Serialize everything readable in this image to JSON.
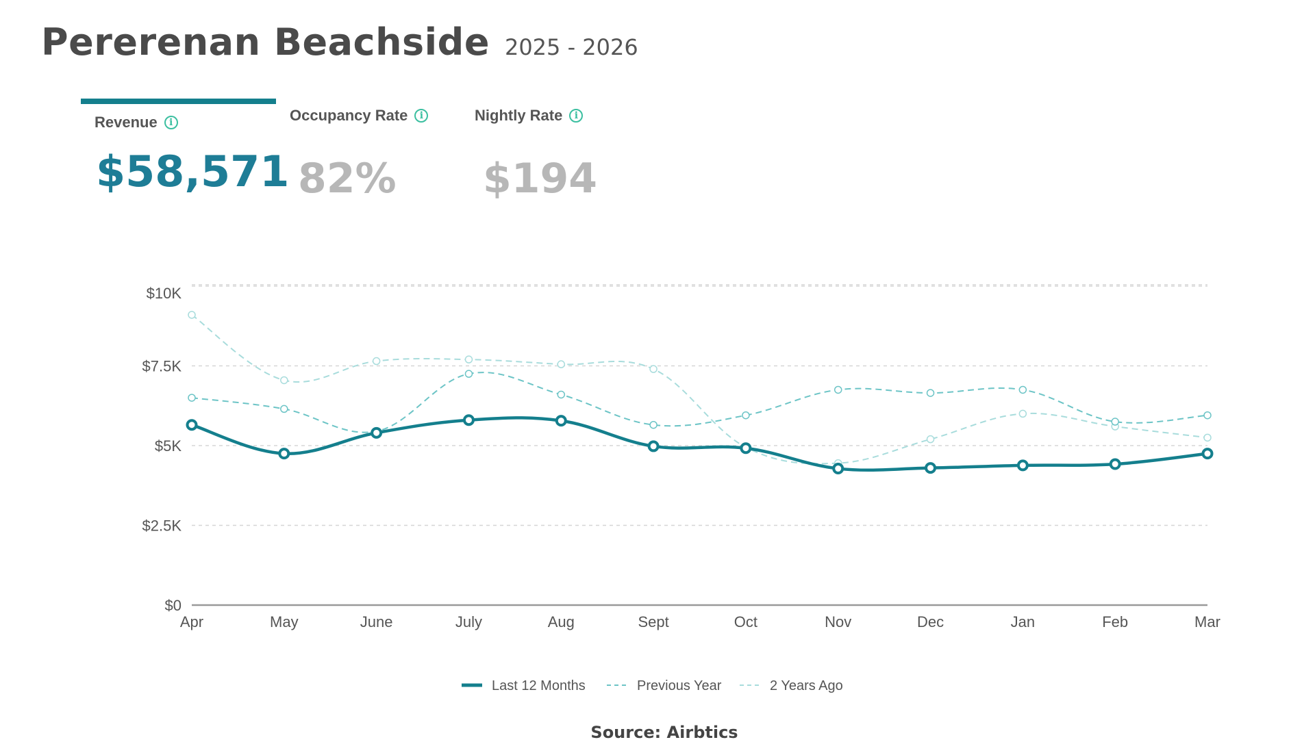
{
  "header": {
    "title": "Pererenan Beachside",
    "subtitle": "2025 - 2026"
  },
  "kpis": [
    {
      "label": "Revenue",
      "value": "$58,571",
      "active": true,
      "icon": "info-icon"
    },
    {
      "label": "Occupancy Rate",
      "value": "82%",
      "active": false,
      "icon": "info-icon"
    },
    {
      "label": "Nightly Rate",
      "value": "$194",
      "active": false,
      "icon": "info-icon"
    }
  ],
  "chart_data": {
    "type": "line",
    "categories": [
      "Apr",
      "May",
      "June",
      "July",
      "Aug",
      "Sept",
      "Oct",
      "Nov",
      "Dec",
      "Jan",
      "Feb",
      "Mar"
    ],
    "yticks": [
      0,
      2500,
      5000,
      7500,
      10000
    ],
    "ytick_labels": [
      "$0",
      "$2.5K",
      "$5K",
      "$7.5K",
      "$10K"
    ],
    "ylim": [
      0,
      10000
    ],
    "grid": true,
    "legend_position": "bottom-center",
    "series": [
      {
        "name": "Last 12 Months",
        "style": "solid",
        "color": "#147f8d",
        "values": [
          5650,
          4750,
          5400,
          5800,
          5780,
          4980,
          4920,
          4280,
          4300,
          4380,
          4420,
          4750
        ]
      },
      {
        "name": "Previous Year",
        "style": "dashed",
        "color": "#6cc4c6",
        "values": [
          6500,
          6150,
          5450,
          7250,
          6600,
          5650,
          5950,
          6750,
          6650,
          6750,
          5750,
          5950
        ]
      },
      {
        "name": "2 Years Ago",
        "style": "dashed-light",
        "color": "#a8dcdc",
        "values": [
          9100,
          7050,
          7650,
          7700,
          7550,
          7400,
          4950,
          4450,
          5200,
          6000,
          5600,
          5250
        ]
      }
    ]
  },
  "source": "Source: Airbtics"
}
